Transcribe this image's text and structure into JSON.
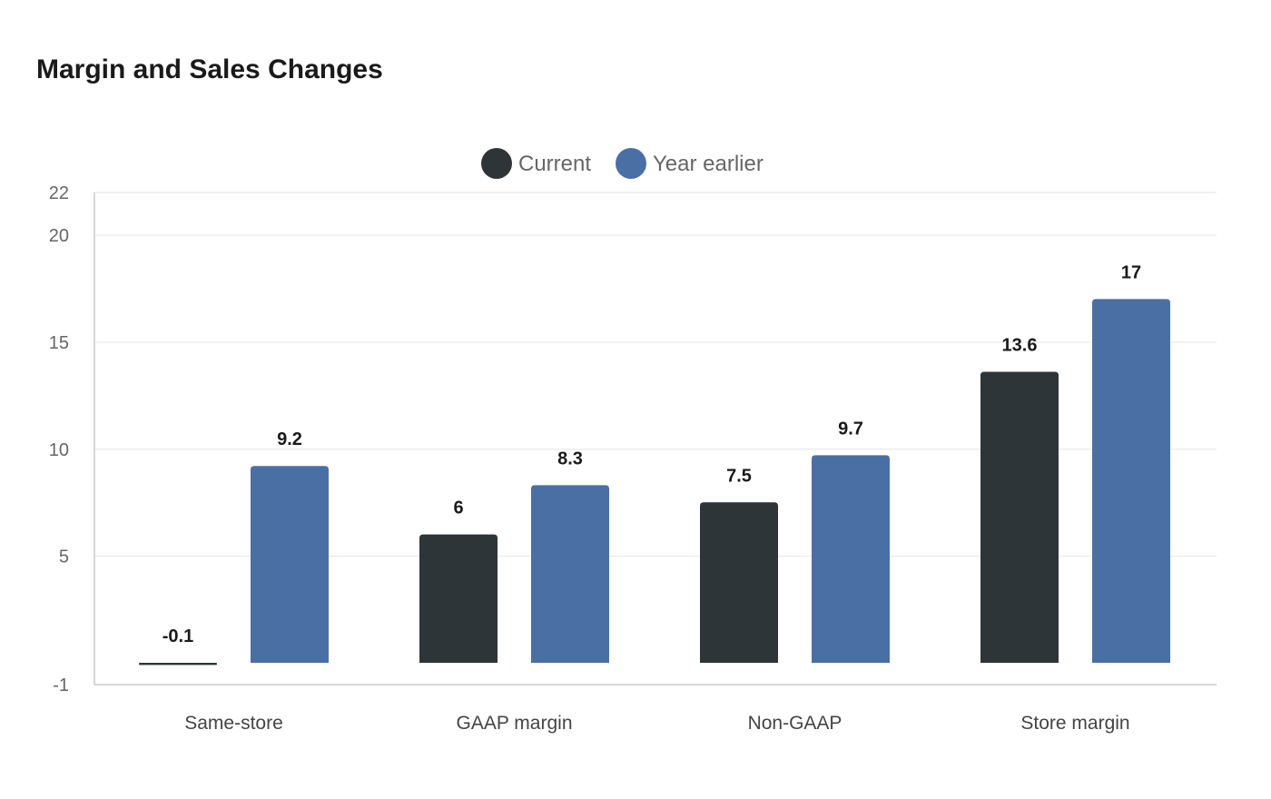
{
  "chart_data": {
    "type": "bar",
    "title": "Margin and Sales Changes",
    "categories": [
      "Same-store",
      "GAAP margin",
      "Non-GAAP",
      "Store margin"
    ],
    "series": [
      {
        "name": "Current",
        "color": "#2e3538",
        "values": [
          -0.1,
          6,
          7.5,
          13.6
        ]
      },
      {
        "name": "Year earlier",
        "color": "#4a6fa5",
        "values": [
          9.2,
          8.3,
          9.7,
          17
        ]
      }
    ],
    "ylim": [
      -1,
      22
    ],
    "yticks": [
      -1,
      5,
      10,
      15,
      20,
      22
    ],
    "xlabel": "",
    "ylabel": "",
    "grid": true,
    "legend": "top-center"
  }
}
